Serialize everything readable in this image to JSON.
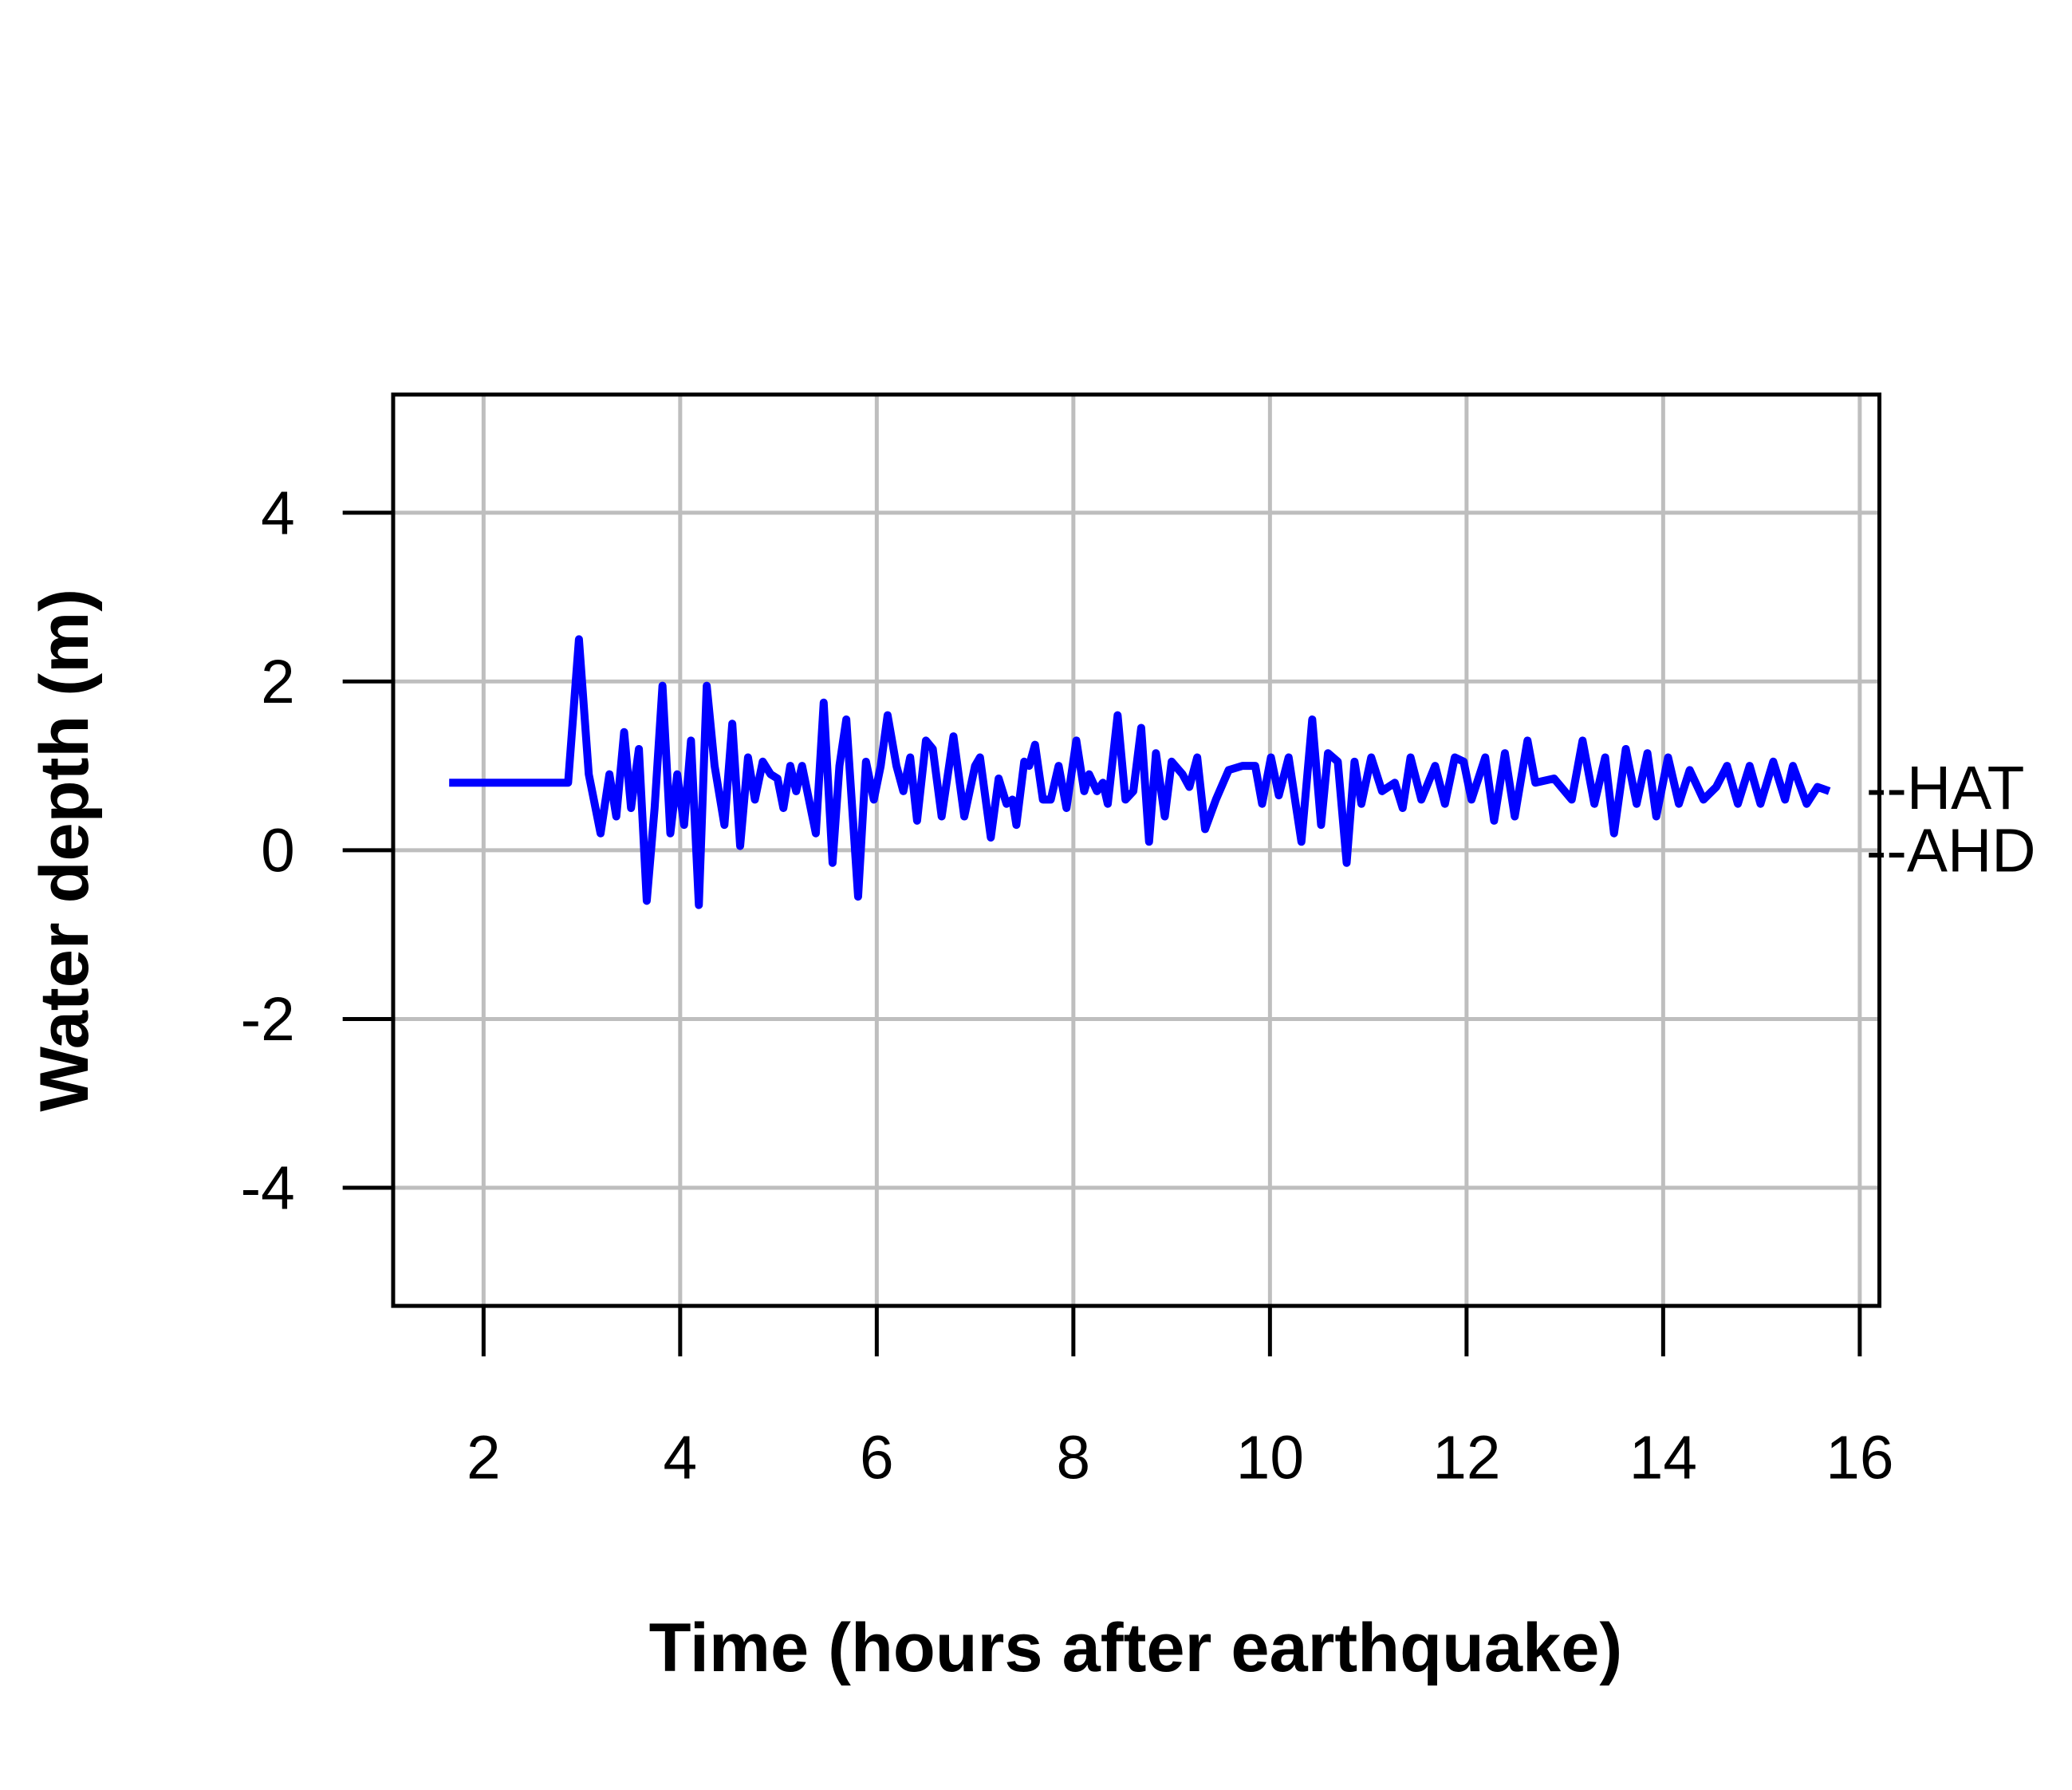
{
  "chart_data": {
    "type": "line",
    "xlabel": "Time (hours after earthquake)",
    "ylabel": "Water depth (m)",
    "xlim": [
      1.08,
      16.2
    ],
    "ylim": [
      -5.4,
      5.4
    ],
    "xticks": [
      2,
      4,
      6,
      8,
      10,
      12,
      14,
      16
    ],
    "yticks": [
      -4,
      -2,
      0,
      2,
      4
    ],
    "grid": true,
    "color": "#0000ff",
    "annotations": [
      {
        "text": "--HAT",
        "value": 0.74
      },
      {
        "text": "--AHD",
        "value": 0
      }
    ],
    "x": [
      1.65,
      2.86,
      2.97,
      3.07,
      3.19,
      3.28,
      3.35,
      3.43,
      3.5,
      3.58,
      3.66,
      3.74,
      3.82,
      3.9,
      3.97,
      4.04,
      4.11,
      4.19,
      4.27,
      4.35,
      4.45,
      4.53,
      4.61,
      4.69,
      4.76,
      4.84,
      4.92,
      4.99,
      5.05,
      5.12,
      5.18,
      5.24,
      5.31,
      5.38,
      5.46,
      5.55,
      5.62,
      5.69,
      5.81,
      5.89,
      5.97,
      6.04,
      6.11,
      6.2,
      6.27,
      6.34,
      6.41,
      6.5,
      6.57,
      6.66,
      6.78,
      6.89,
      7.0,
      7.05,
      7.16,
      7.24,
      7.32,
      7.38,
      7.42,
      7.5,
      7.55,
      7.61,
      7.69,
      7.77,
      7.85,
      7.93,
      8.03,
      8.11,
      8.16,
      8.24,
      8.3,
      8.35,
      8.45,
      8.53,
      8.61,
      8.69,
      8.77,
      8.84,
      8.93,
      9.0,
      9.11,
      9.18,
      9.26,
      9.34,
      9.45,
      9.58,
      9.72,
      9.85,
      9.92,
      10.01,
      10.09,
      10.19,
      10.32,
      10.43,
      10.52,
      10.59,
      10.69,
      10.78,
      10.86,
      10.93,
      11.03,
      11.14,
      11.27,
      11.35,
      11.43,
      11.54,
      11.68,
      11.78,
      11.88,
      11.97,
      12.05,
      12.19,
      12.28,
      12.39,
      12.49,
      12.62,
      12.7,
      12.89,
      13.07,
      13.18,
      13.3,
      13.41,
      13.5,
      13.62,
      13.73,
      13.84,
      13.93,
      14.05,
      14.16,
      14.27,
      14.41,
      14.54,
      14.65,
      14.76,
      14.88,
      14.99,
      15.12,
      15.24,
      15.32,
      15.46,
      15.57,
      15.69
    ],
    "values": [
      0.8,
      0.8,
      2.5,
      0.9,
      0.2,
      0.9,
      0.4,
      1.4,
      0.5,
      1.2,
      -0.6,
      0.5,
      1.95,
      0.2,
      0.9,
      0.3,
      1.3,
      -0.65,
      1.95,
      1.0,
      0.3,
      1.5,
      0.05,
      1.1,
      0.6,
      1.05,
      0.9,
      0.85,
      0.5,
      1.0,
      0.7,
      1.0,
      0.6,
      0.2,
      1.75,
      -0.15,
      1.0,
      1.55,
      -0.55,
      1.05,
      0.6,
      1.0,
      1.6,
      1.0,
      0.7,
      1.1,
      0.35,
      1.3,
      1.2,
      0.4,
      1.35,
      0.4,
      1.0,
      1.1,
      0.15,
      0.85,
      0.55,
      0.6,
      0.3,
      1.05,
      1.0,
      1.25,
      0.6,
      0.6,
      1.0,
      0.5,
      1.3,
      0.7,
      0.9,
      0.7,
      0.8,
      0.55,
      1.6,
      0.6,
      0.7,
      1.45,
      0.1,
      1.15,
      0.4,
      1.05,
      0.9,
      0.75,
      1.1,
      0.25,
      0.6,
      0.95,
      1.0,
      1.0,
      0.55,
      1.1,
      0.65,
      1.1,
      0.1,
      1.55,
      0.3,
      1.15,
      1.05,
      -0.15,
      1.05,
      0.55,
      1.1,
      0.7,
      0.8,
      0.5,
      1.1,
      0.6,
      1.0,
      0.55,
      1.1,
      1.05,
      0.6,
      1.1,
      0.35,
      1.15,
      0.4,
      1.3,
      0.8,
      0.85,
      0.6,
      1.3,
      0.55,
      1.1,
      0.2,
      1.2,
      0.55,
      1.15,
      0.4,
      1.1,
      0.55,
      0.95,
      0.6,
      0.75,
      1.0,
      0.55,
      1.0,
      0.55,
      1.05,
      0.6,
      1.0,
      0.55,
      0.75,
      0.7
    ]
  }
}
